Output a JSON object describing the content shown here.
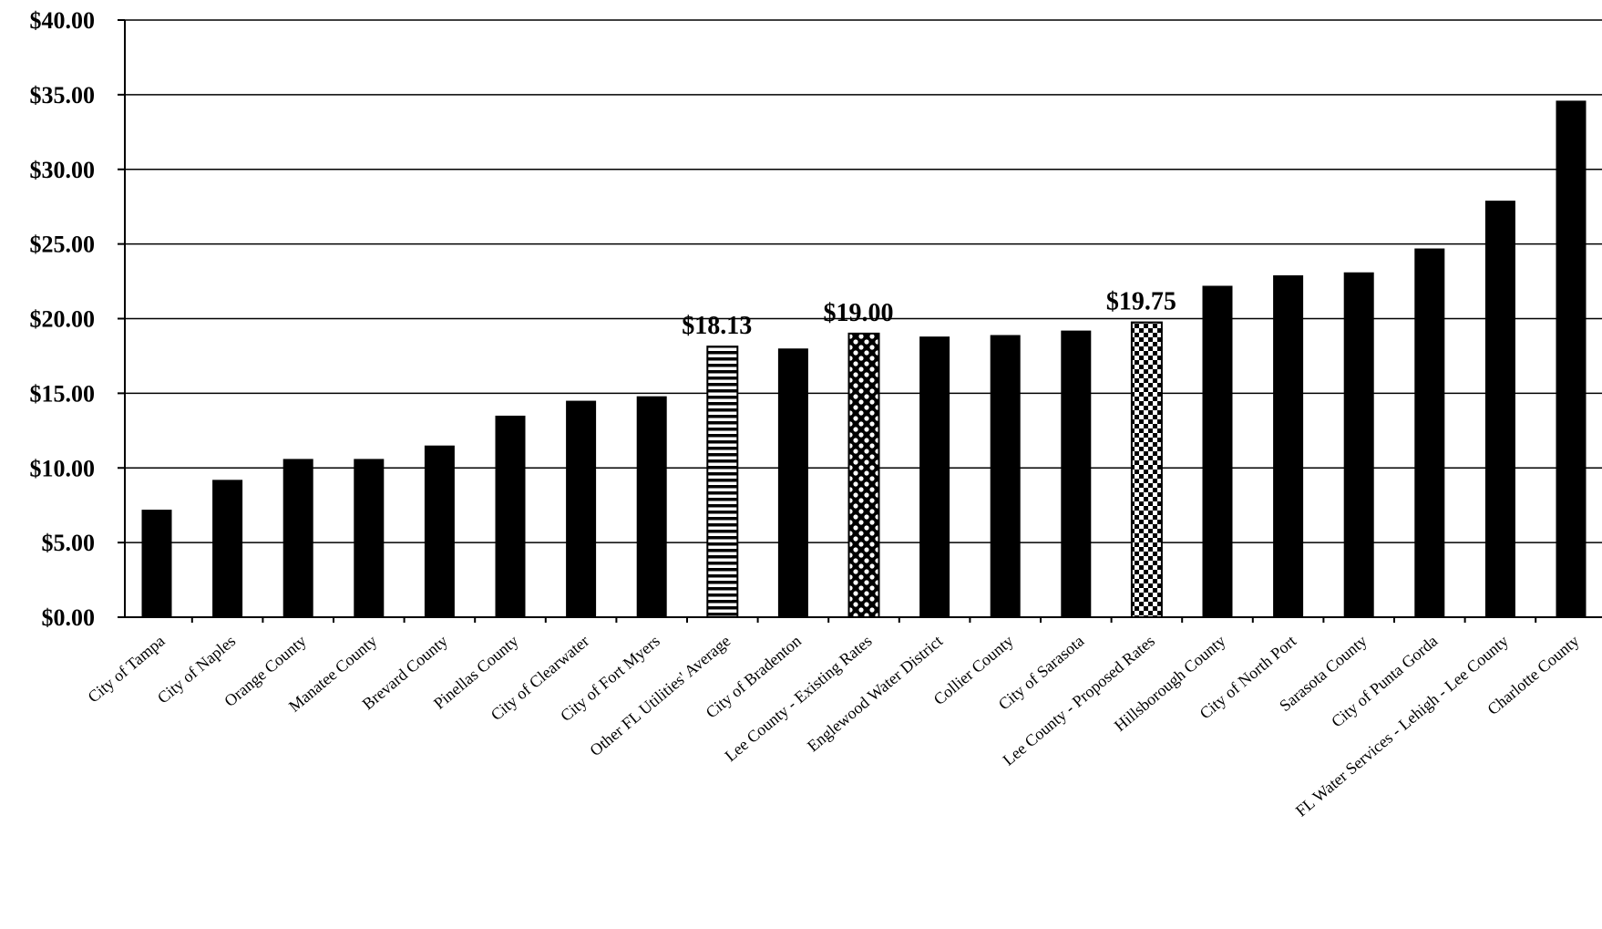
{
  "chart_data": {
    "type": "bar",
    "title": "",
    "xlabel": "",
    "ylabel": "",
    "ylim": [
      0,
      40
    ],
    "yticks": [
      "$0.00",
      "$5.00",
      "$10.00",
      "$15.00",
      "$20.00",
      "$25.00",
      "$30.00",
      "$35.00",
      "$40.00"
    ],
    "grid": true,
    "legend": "none",
    "categories": [
      "City of Tampa",
      "City of Naples",
      "Orange County",
      "Manatee County",
      "Brevard County",
      "Pinellas County",
      "City of Clearwater",
      "City of Fort Myers",
      "Other FL Utilities' Average",
      "City of Bradenton",
      "Lee County - Existing Rates",
      "Englewood Water District",
      "Collier County",
      "City of Sarasota",
      "Lee County - Proposed Rates",
      "Hillsborough County",
      "City of North Port",
      "Sarasota County",
      "City of Punta Gorda",
      "FL Water Services - Lehigh - Lee County",
      "Charlotte County"
    ],
    "values": [
      7.2,
      9.2,
      10.6,
      10.6,
      11.5,
      13.5,
      14.5,
      14.8,
      18.13,
      18.0,
      19.0,
      18.8,
      18.9,
      19.2,
      19.75,
      22.2,
      22.9,
      23.1,
      24.7,
      27.9,
      34.6
    ],
    "patterns": [
      "solid",
      "solid",
      "solid",
      "solid",
      "solid",
      "solid",
      "solid",
      "solid",
      "horizontal-stripes",
      "solid",
      "polka-dots",
      "solid",
      "solid",
      "solid",
      "checkerboard",
      "solid",
      "solid",
      "solid",
      "solid",
      "solid",
      "solid"
    ],
    "data_labels": [
      {
        "index": 8,
        "text": "$18.13"
      },
      {
        "index": 10,
        "text": "$19.00"
      },
      {
        "index": 14,
        "text": "$19.75"
      }
    ],
    "bar_color": "#000000"
  }
}
